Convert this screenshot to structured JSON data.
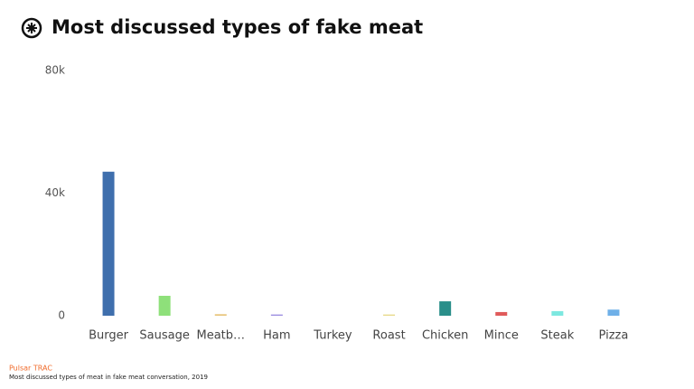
{
  "chart_data": {
    "type": "bar",
    "title": "Most discussed types of fake meat",
    "categories": [
      "Burger",
      "Sausage",
      "Meatb…",
      "Ham",
      "Turkey",
      "Roast",
      "Chicken",
      "Mince",
      "Steak",
      "Pizza"
    ],
    "values": [
      47000,
      6500,
      500,
      400,
      0,
      400,
      4700,
      1200,
      1500,
      2000
    ],
    "colors": [
      "#3f6fad",
      "#8ee07a",
      "#e8c57a",
      "#9b8de0",
      "#c8a0e0",
      "#e8d98a",
      "#2a8f8a",
      "#e05a5a",
      "#7de8e0",
      "#6fb0e8"
    ],
    "ylim": [
      0,
      80000
    ],
    "yticks": [
      0,
      {
        "value": 40000,
        "label": "40k"
      },
      {
        "value": 80000,
        "label": "80k"
      }
    ],
    "grid": false,
    "source": "Pulsar TRAC",
    "caption": "Most discussed types of meat in fake meat conversation, 2019"
  }
}
